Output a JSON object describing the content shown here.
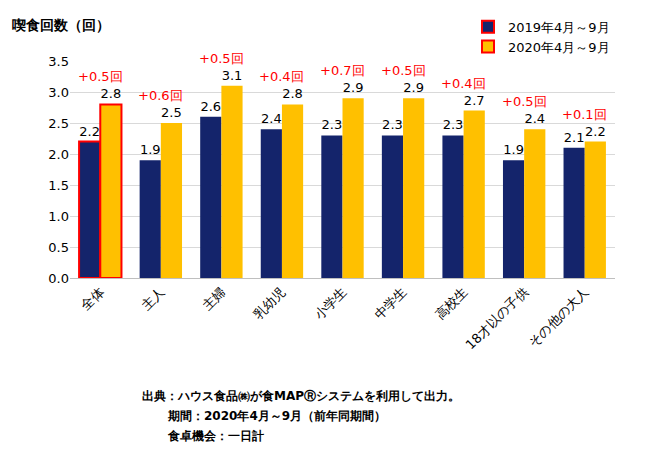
{
  "chart_data": {
    "type": "bar",
    "y_label": "喫食回数（回）",
    "categories": [
      "全体",
      "主人",
      "主婦",
      "乳幼児",
      "小学生",
      "中学生",
      "高校生",
      "18才以の子供",
      "その他の大人"
    ],
    "series": [
      {
        "name": "2019年4月～9月",
        "color": "#14246b",
        "values": [
          2.2,
          1.9,
          2.6,
          2.4,
          2.3,
          2.3,
          2.3,
          1.9,
          2.1
        ]
      },
      {
        "name": "2020年4月～9月",
        "color": "#ffc000",
        "values": [
          2.8,
          2.5,
          3.1,
          2.8,
          2.9,
          2.9,
          2.7,
          2.4,
          2.2
        ]
      }
    ],
    "annotations": [
      {
        "category": "全体",
        "text": "+0.5回"
      },
      {
        "category": "主人",
        "text": "+0.6回"
      },
      {
        "category": "主婦",
        "text": "+0.5回"
      },
      {
        "category": "乳幼児",
        "text": "+0.4回"
      },
      {
        "category": "小学生",
        "text": "+0.7回"
      },
      {
        "category": "中学生",
        "text": "+0.5回"
      },
      {
        "category": "高校生",
        "text": "+0.4回"
      },
      {
        "category": "18才以の子供",
        "text": "+0.5回"
      },
      {
        "category": "その他の大人",
        "text": "+0.1回"
      }
    ],
    "note": [
      "出典：ハウス食品㈱が食MAPⓇシステムを利用して出力。",
      "期間：2020年4月～9月（前年同期間）",
      "食卓機会：一日計"
    ],
    "ylim": [
      0,
      3.5
    ],
    "yticks": [
      {
        "value": 0,
        "label": "0.0"
      },
      0.5,
      {
        "value": 1,
        "label": "1.0"
      },
      1.5,
      {
        "value": 2,
        "label": "2.0"
      },
      2.5,
      {
        "value": 3,
        "label": "3.0"
      },
      3.5
    ],
    "grid": true,
    "legend": "upper right",
    "data_labels": true
  }
}
